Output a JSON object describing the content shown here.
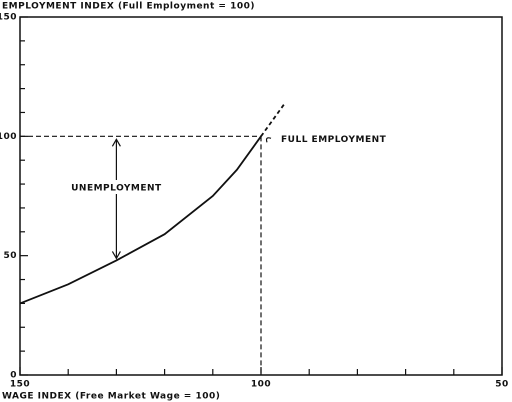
{
  "chart_data": {
    "type": "line",
    "title": "EMPLOYMENT INDEX (Full Employment = 100)",
    "x_label": "WAGE INDEX (Free Market Wage = 100)",
    "x": [
      150,
      140,
      130,
      120,
      110,
      105,
      100,
      95
    ],
    "series": [
      {
        "style": "solid",
        "color": "#111111",
        "values": [
          30,
          38,
          48,
          59,
          75,
          86,
          100,
          null
        ]
      },
      {
        "style": "dashed",
        "color": "#111111",
        "values": [
          null,
          null,
          null,
          null,
          null,
          null,
          100,
          114
        ]
      }
    ],
    "xlim": [
      150,
      50
    ],
    "ylim": [
      0,
      150
    ],
    "xticks": [
      150,
      100,
      50
    ],
    "yticks": [
      0,
      50,
      100,
      150
    ],
    "x_minor_ticks": [
      140,
      130,
      120,
      110,
      90,
      80,
      70,
      60
    ],
    "y_minor_ticks": [
      10,
      20,
      30,
      40,
      60,
      70,
      80,
      90,
      110,
      120,
      130,
      140
    ],
    "hline": 100,
    "vline": 100,
    "annotations": [
      "FULL EMPLOYMENT",
      "UNEMPLOYMENT"
    ]
  }
}
